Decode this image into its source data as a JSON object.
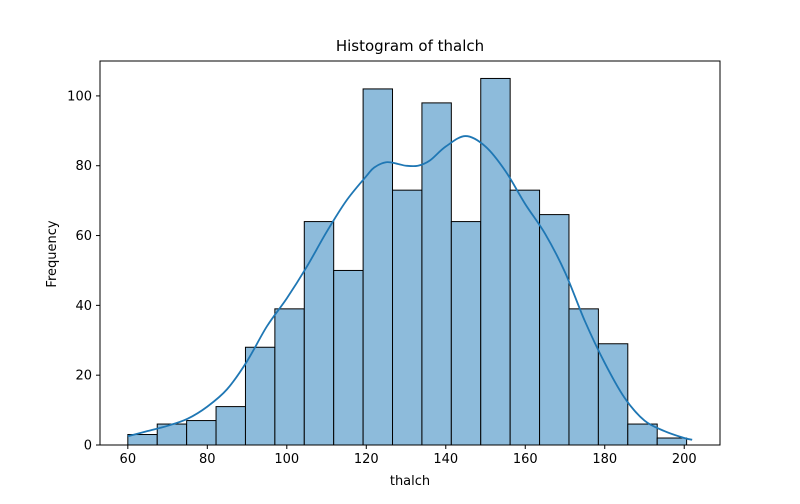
{
  "chart_data": {
    "type": "bar",
    "title": "Histogram of thalch",
    "xlabel": "thalch",
    "ylabel": "Frequency",
    "xlim": [
      53,
      209
    ],
    "ylim": [
      0,
      110
    ],
    "x_ticks": [
      60,
      80,
      100,
      120,
      140,
      160,
      180,
      200
    ],
    "y_ticks": [
      0,
      20,
      40,
      60,
      80,
      100
    ],
    "bins": [
      {
        "start": 60.0,
        "end": 67.4,
        "count": 3
      },
      {
        "start": 67.4,
        "end": 74.8,
        "count": 6
      },
      {
        "start": 74.8,
        "end": 82.2,
        "count": 7
      },
      {
        "start": 82.2,
        "end": 89.6,
        "count": 11
      },
      {
        "start": 89.6,
        "end": 97.0,
        "count": 28
      },
      {
        "start": 97.0,
        "end": 104.4,
        "count": 39
      },
      {
        "start": 104.4,
        "end": 111.8,
        "count": 64
      },
      {
        "start": 111.8,
        "end": 119.2,
        "count": 50
      },
      {
        "start": 119.2,
        "end": 126.6,
        "count": 102
      },
      {
        "start": 126.6,
        "end": 134.0,
        "count": 73
      },
      {
        "start": 134.0,
        "end": 141.4,
        "count": 98
      },
      {
        "start": 141.4,
        "end": 148.8,
        "count": 64
      },
      {
        "start": 148.8,
        "end": 156.2,
        "count": 105
      },
      {
        "start": 156.2,
        "end": 163.6,
        "count": 73
      },
      {
        "start": 163.6,
        "end": 171.0,
        "count": 66
      },
      {
        "start": 171.0,
        "end": 178.4,
        "count": 39
      },
      {
        "start": 178.4,
        "end": 185.8,
        "count": 29
      },
      {
        "start": 185.8,
        "end": 193.2,
        "count": 6
      },
      {
        "start": 193.2,
        "end": 200.6,
        "count": 2
      }
    ],
    "kde": {
      "x": [
        60,
        65,
        70,
        75,
        80,
        85,
        90,
        95,
        100,
        105,
        110,
        115,
        120,
        122,
        125,
        128,
        130,
        133,
        136,
        140,
        145,
        150,
        155,
        160,
        165,
        170,
        175,
        180,
        185,
        190,
        195,
        200,
        202
      ],
      "y": [
        2.5,
        4,
        5.5,
        7.5,
        11,
        16,
        24,
        34,
        42,
        51,
        61,
        70,
        77,
        79.5,
        81,
        80.5,
        80,
        80,
        81.5,
        85.5,
        88.5,
        85.5,
        78.5,
        69,
        60.5,
        49.5,
        35.5,
        23.5,
        13.5,
        7,
        4,
        2,
        1.5
      ]
    },
    "colors": {
      "bar_fill": "#8dbbdb",
      "bar_edge": "#000000",
      "kde_line": "#1f77b4"
    },
    "grid": false,
    "legend": "none"
  }
}
